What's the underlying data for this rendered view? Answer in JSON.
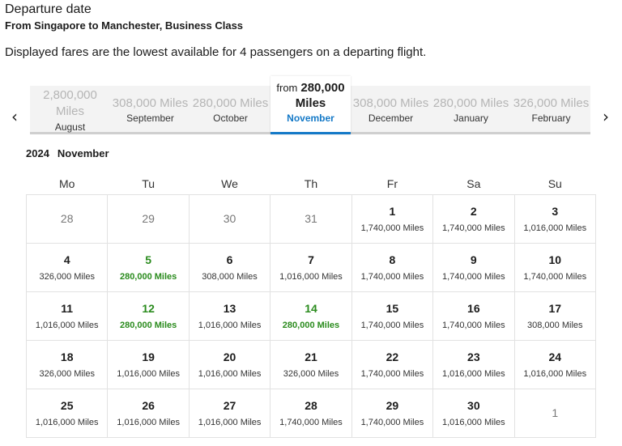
{
  "header": {
    "title": "Departure date",
    "route": "From Singapore to Manchester, Business Class",
    "notice": "Displayed fares are the lowest available for 4 passengers on a departing flight."
  },
  "nav": {
    "prev_icon": "‹",
    "next_icon": "›"
  },
  "months": [
    {
      "price": "2,800,000",
      "miles": "Miles",
      "name": "August",
      "layout": "two-line"
    },
    {
      "price": "308,000 Miles",
      "name": "September",
      "layout": "one-line"
    },
    {
      "price": "280,000 Miles",
      "name": "October",
      "layout": "one-line"
    },
    {
      "from": "from",
      "price": "280,000",
      "miles": "Miles",
      "name": "November",
      "active": true
    },
    {
      "price": "308,000 Miles",
      "name": "December",
      "layout": "one-line"
    },
    {
      "price": "280,000 Miles",
      "name": "January",
      "layout": "one-line"
    },
    {
      "price": "326,000 Miles",
      "name": "February",
      "layout": "one-line"
    }
  ],
  "calendar": {
    "year": "2024",
    "month": "November",
    "weekdays": [
      "Mo",
      "Tu",
      "We",
      "Th",
      "Fr",
      "Sa",
      "Su"
    ],
    "weeks": [
      [
        {
          "day": "28",
          "out": true
        },
        {
          "day": "29",
          "out": true
        },
        {
          "day": "30",
          "out": true
        },
        {
          "day": "31",
          "out": true
        },
        {
          "day": "1",
          "fare": "1,740,000 Miles"
        },
        {
          "day": "2",
          "fare": "1,740,000 Miles"
        },
        {
          "day": "3",
          "fare": "1,016,000 Miles"
        }
      ],
      [
        {
          "day": "4",
          "fare": "326,000 Miles"
        },
        {
          "day": "5",
          "fare": "280,000 Miles",
          "cheapest": true
        },
        {
          "day": "6",
          "fare": "308,000 Miles"
        },
        {
          "day": "7",
          "fare": "1,016,000 Miles"
        },
        {
          "day": "8",
          "fare": "1,740,000 Miles"
        },
        {
          "day": "9",
          "fare": "1,740,000 Miles"
        },
        {
          "day": "10",
          "fare": "1,740,000 Miles"
        }
      ],
      [
        {
          "day": "11",
          "fare": "1,016,000 Miles"
        },
        {
          "day": "12",
          "fare": "280,000 Miles",
          "cheapest": true
        },
        {
          "day": "13",
          "fare": "1,016,000 Miles"
        },
        {
          "day": "14",
          "fare": "280,000 Miles",
          "cheapest": true
        },
        {
          "day": "15",
          "fare": "1,740,000 Miles"
        },
        {
          "day": "16",
          "fare": "1,740,000 Miles"
        },
        {
          "day": "17",
          "fare": "308,000 Miles"
        }
      ],
      [
        {
          "day": "18",
          "fare": "326,000 Miles"
        },
        {
          "day": "19",
          "fare": "1,016,000 Miles"
        },
        {
          "day": "20",
          "fare": "1,016,000 Miles"
        },
        {
          "day": "21",
          "fare": "326,000 Miles"
        },
        {
          "day": "22",
          "fare": "1,740,000 Miles"
        },
        {
          "day": "23",
          "fare": "1,016,000 Miles"
        },
        {
          "day": "24",
          "fare": "1,016,000 Miles"
        }
      ],
      [
        {
          "day": "25",
          "fare": "1,016,000 Miles"
        },
        {
          "day": "26",
          "fare": "1,016,000 Miles"
        },
        {
          "day": "27",
          "fare": "1,016,000 Miles"
        },
        {
          "day": "28",
          "fare": "1,740,000 Miles"
        },
        {
          "day": "29",
          "fare": "1,740,000 Miles"
        },
        {
          "day": "30",
          "fare": "1,016,000 Miles"
        },
        {
          "day": "1",
          "out": true
        }
      ]
    ]
  },
  "colors": {
    "accent": "#1479c7",
    "cheapest": "#2a8b1d",
    "muted": "#b5b5b5",
    "border": "#e2e2e2"
  }
}
